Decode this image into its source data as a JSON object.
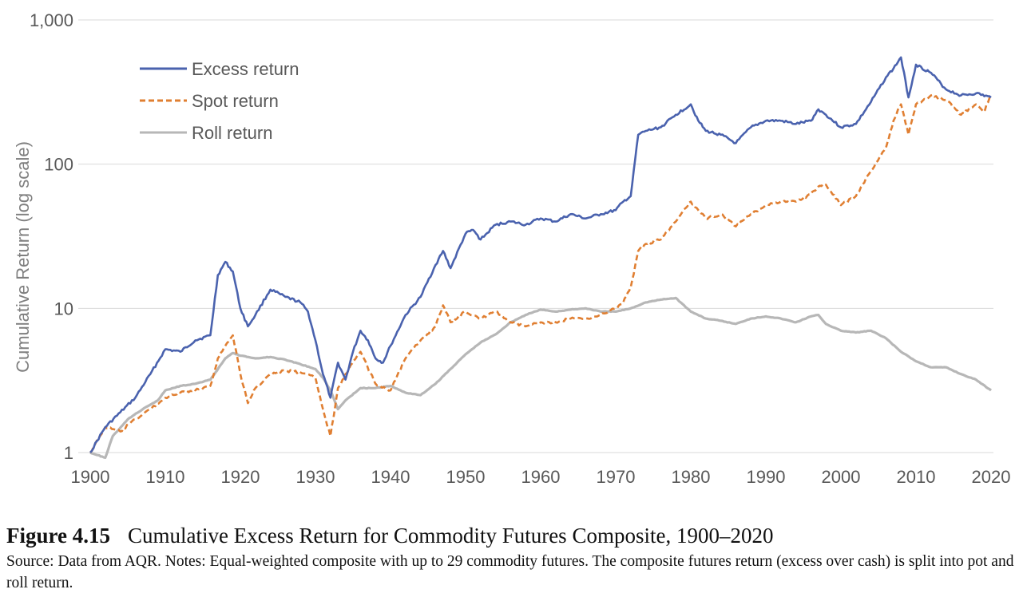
{
  "caption": {
    "figure_label": "Figure 4.15",
    "title": "Cumulative Excess Return for Commodity Futures Composite, 1900–2020",
    "source": "Source: Data from AQR. Notes: Equal-weighted composite with up to 29 commodity futures. The composite futures return (excess over cash) is split into pot and roll return."
  },
  "chart_data": {
    "type": "line",
    "title": "",
    "xlabel": "",
    "ylabel": "Cumulative Return (log scale)",
    "y_scale": "log",
    "ylim": [
      1,
      1000
    ],
    "xlim": [
      1900,
      2020
    ],
    "x_ticks": [
      1900,
      1910,
      1920,
      1930,
      1940,
      1950,
      1960,
      1970,
      1980,
      1990,
      2000,
      2010,
      2020
    ],
    "y_ticks": [
      1,
      10,
      100,
      1000
    ],
    "y_tick_labels": [
      "1",
      "10",
      "100",
      "1,000"
    ],
    "grid": "horizontal",
    "legend_position": "top-left",
    "series": [
      {
        "name": "Excess return",
        "color": "#4a62ae",
        "dash": "solid",
        "x": [
          1900,
          1902,
          1904,
          1906,
          1908,
          1910,
          1912,
          1914,
          1916,
          1917,
          1918,
          1919,
          1920,
          1921,
          1922,
          1924,
          1926,
          1928,
          1929,
          1930,
          1931,
          1932,
          1933,
          1934,
          1935,
          1936,
          1937,
          1938,
          1939,
          1940,
          1942,
          1944,
          1946,
          1947,
          1948,
          1950,
          1951,
          1952,
          1954,
          1956,
          1958,
          1960,
          1962,
          1964,
          1966,
          1968,
          1970,
          1971,
          1972,
          1973,
          1974,
          1976,
          1978,
          1980,
          1981,
          1982,
          1984,
          1986,
          1988,
          1990,
          1992,
          1994,
          1996,
          1997,
          1998,
          2000,
          2002,
          2004,
          2006,
          2007,
          2008,
          2009,
          2010,
          2012,
          2014,
          2016,
          2018,
          2020
        ],
        "values": [
          1.0,
          1.5,
          1.9,
          2.4,
          3.5,
          5.2,
          5.0,
          6.0,
          6.5,
          17.0,
          21.0,
          18.0,
          10.0,
          7.5,
          9.0,
          13.5,
          12.0,
          11.0,
          9.5,
          6.0,
          3.5,
          2.4,
          4.2,
          3.2,
          5.0,
          7.0,
          6.0,
          4.5,
          4.2,
          5.5,
          9.0,
          12.0,
          20.0,
          25.0,
          19.0,
          33.0,
          35.0,
          30.0,
          38.0,
          40.0,
          38.0,
          42.0,
          40.0,
          45.0,
          42.0,
          45.0,
          48.0,
          55.0,
          60.0,
          160.0,
          170.0,
          180.0,
          220.0,
          260.0,
          200.0,
          170.0,
          160.0,
          140.0,
          180.0,
          200.0,
          200.0,
          190.0,
          200.0,
          240.0,
          220.0,
          180.0,
          190.0,
          270.0,
          400.0,
          460.0,
          550.0,
          290.0,
          490.0,
          430.0,
          330.0,
          300.0,
          310.0,
          290.0
        ]
      },
      {
        "name": "Spot return",
        "color": "#e07f32",
        "dash": "dashed",
        "x": [
          1900,
          1902,
          1904,
          1906,
          1908,
          1910,
          1912,
          1914,
          1916,
          1917,
          1918,
          1919,
          1920,
          1921,
          1922,
          1924,
          1926,
          1928,
          1930,
          1931,
          1932,
          1933,
          1934,
          1936,
          1938,
          1940,
          1942,
          1944,
          1946,
          1947,
          1948,
          1950,
          1952,
          1954,
          1956,
          1958,
          1960,
          1962,
          1964,
          1966,
          1968,
          1970,
          1971,
          1972,
          1973,
          1974,
          1976,
          1978,
          1980,
          1981,
          1982,
          1984,
          1986,
          1988,
          1990,
          1992,
          1994,
          1996,
          1997,
          1998,
          2000,
          2002,
          2004,
          2006,
          2007,
          2008,
          2009,
          2010,
          2012,
          2014,
          2016,
          2018,
          2019,
          2020
        ],
        "values": [
          1.0,
          1.5,
          1.4,
          1.7,
          2.0,
          2.4,
          2.6,
          2.7,
          2.9,
          4.5,
          5.5,
          6.5,
          3.5,
          2.2,
          2.8,
          3.5,
          3.7,
          3.6,
          3.3,
          2.0,
          1.3,
          2.8,
          3.5,
          5.0,
          3.0,
          2.7,
          4.5,
          6.0,
          7.5,
          10.5,
          8.0,
          9.5,
          8.5,
          9.5,
          8.0,
          7.5,
          8.0,
          8.0,
          8.5,
          8.5,
          9.0,
          10.0,
          11.0,
          14.0,
          25.0,
          28.0,
          30.0,
          40.0,
          55.0,
          48.0,
          42.0,
          45.0,
          37.0,
          45.0,
          52.0,
          55.0,
          55.0,
          62.0,
          70.0,
          72.0,
          52.0,
          60.0,
          90.0,
          130.0,
          200.0,
          260.0,
          160.0,
          260.0,
          300.0,
          280.0,
          220.0,
          260.0,
          230.0,
          300.0
        ]
      },
      {
        "name": "Roll return",
        "color": "#b7b7b7",
        "dash": "solid",
        "x": [
          1900,
          1901,
          1902,
          1903,
          1905,
          1907,
          1909,
          1910,
          1912,
          1914,
          1916,
          1918,
          1919,
          1920,
          1922,
          1924,
          1926,
          1928,
          1930,
          1931,
          1932,
          1933,
          1934,
          1936,
          1938,
          1940,
          1942,
          1944,
          1946,
          1948,
          1950,
          1952,
          1954,
          1956,
          1958,
          1960,
          1962,
          1964,
          1966,
          1968,
          1970,
          1972,
          1974,
          1976,
          1978,
          1980,
          1982,
          1984,
          1986,
          1988,
          1990,
          1992,
          1994,
          1996,
          1997,
          1998,
          2000,
          2002,
          2004,
          2006,
          2008,
          2010,
          2012,
          2014,
          2016,
          2018,
          2020
        ],
        "values": [
          1.0,
          0.96,
          0.92,
          1.3,
          1.7,
          2.0,
          2.3,
          2.7,
          2.9,
          3.0,
          3.2,
          4.5,
          4.9,
          4.7,
          4.5,
          4.6,
          4.4,
          4.1,
          3.8,
          3.3,
          2.7,
          2.0,
          2.3,
          2.8,
          2.8,
          2.9,
          2.6,
          2.5,
          3.0,
          3.8,
          4.8,
          5.8,
          6.6,
          8.0,
          9.0,
          9.8,
          9.5,
          9.8,
          10.0,
          9.5,
          9.5,
          10.0,
          11.0,
          11.5,
          11.8,
          9.5,
          8.5,
          8.2,
          7.8,
          8.5,
          8.8,
          8.5,
          8.0,
          8.8,
          9.0,
          7.8,
          7.0,
          6.8,
          7.0,
          6.2,
          5.0,
          4.3,
          3.9,
          3.9,
          3.5,
          3.2,
          2.7
        ]
      }
    ]
  }
}
